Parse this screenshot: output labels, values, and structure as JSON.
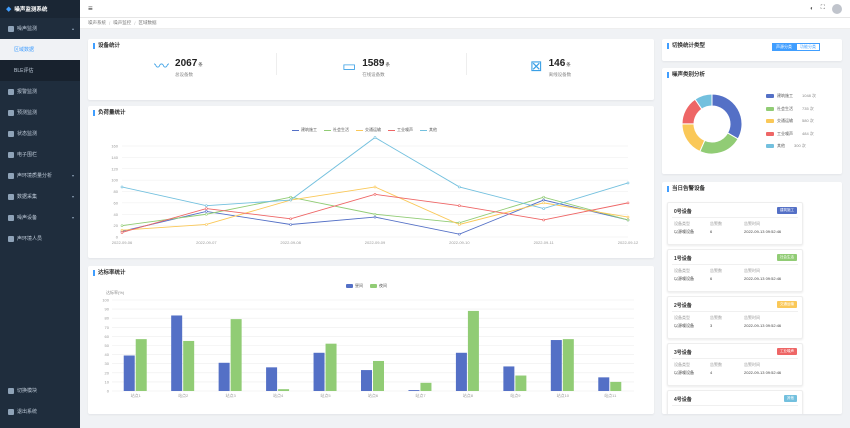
{
  "app": {
    "title": "噪声监测系统"
  },
  "sidebar": {
    "items": [
      {
        "label": "噪声监测",
        "icon": "monitor-icon",
        "caret": "▴"
      },
      {
        "label": "区域数据",
        "icon": "",
        "sub": true,
        "active": true
      },
      {
        "label": "BLE评估",
        "icon": "",
        "sub": true
      },
      {
        "label": "报警监测",
        "icon": "alarm-icon"
      },
      {
        "label": "预测监测",
        "icon": "forecast-icon"
      },
      {
        "label": "状态监测",
        "icon": "status-icon"
      },
      {
        "label": "电子围栏",
        "icon": "fence-icon"
      },
      {
        "label": "声环境质量分析",
        "icon": "analysis-icon",
        "caret": "▾"
      },
      {
        "label": "数据采集",
        "icon": "collect-icon",
        "caret": "▾"
      },
      {
        "label": "噪声设备",
        "icon": "device-icon",
        "caret": "▾"
      },
      {
        "label": "声环境人员",
        "icon": "people-icon"
      }
    ],
    "bottom": [
      {
        "label": "切换模块",
        "icon": "grid-icon"
      },
      {
        "label": "退出系统",
        "icon": "power-icon"
      }
    ]
  },
  "header": {
    "menu_icon": "≡",
    "icons": [
      "◐",
      "⛶"
    ]
  },
  "breadcrumb": [
    "噪声系统",
    "噪声监控",
    "区域数据"
  ],
  "device_stats": {
    "title": "设备统计",
    "items": [
      {
        "value": "2067",
        "unit": "条",
        "label": "总设备数",
        "icon": "waveform-icon",
        "glyph": "〰"
      },
      {
        "value": "1589",
        "unit": "条",
        "label": "在线设备数",
        "icon": "monitor-online-icon",
        "glyph": "▭"
      },
      {
        "value": "146",
        "unit": "条",
        "label": "离线设备数",
        "icon": "monitor-offline-icon",
        "glyph": "⊠"
      }
    ]
  },
  "load_chart": {
    "title": "负荷量统计",
    "chart_data": {
      "type": "line",
      "x": [
        "2022-09-06",
        "2022-09-07",
        "2022-09-08",
        "2022-09-09",
        "2022-09-10",
        "2022-09-11",
        "2022-09-12"
      ],
      "ylim": [
        0,
        160
      ],
      "yticks": [
        0,
        20,
        40,
        60,
        80,
        100,
        120,
        140,
        160
      ],
      "grid": true,
      "legend": "top-center",
      "series": [
        {
          "name": "建筑施工",
          "color": "#5470c6",
          "values": [
            10,
            45,
            22,
            35,
            5,
            65,
            30
          ]
        },
        {
          "name": "社会生活",
          "color": "#91cc75",
          "values": [
            20,
            40,
            70,
            40,
            25,
            70,
            30
          ]
        },
        {
          "name": "交通运输",
          "color": "#fac858",
          "values": [
            12,
            22,
            65,
            88,
            22,
            60,
            35
          ]
        },
        {
          "name": "工业噪声",
          "color": "#ee6666",
          "values": [
            8,
            50,
            32,
            75,
            55,
            30,
            60
          ]
        },
        {
          "name": "其他",
          "color": "#73c0de",
          "values": [
            88,
            55,
            65,
            175,
            88,
            50,
            95
          ]
        }
      ]
    }
  },
  "rate_chart": {
    "title": "达标率统计",
    "chart_data": {
      "type": "bar",
      "ylabel": "达标率(%)",
      "ylim": [
        0,
        100
      ],
      "yticks": [
        0,
        10,
        20,
        30,
        40,
        50,
        60,
        70,
        80,
        90,
        100
      ],
      "grid": true,
      "legend": "top-center",
      "categories": [
        "站点1",
        "站点2",
        "站点3",
        "站点4",
        "站点5",
        "站点6",
        "站点7",
        "站点8",
        "站点9",
        "站点10",
        "站点11"
      ],
      "series": [
        {
          "name": "昼间",
          "color": "#5470c6",
          "values": [
            39,
            83,
            31,
            26,
            42,
            23,
            1,
            42,
            27,
            56,
            15
          ]
        },
        {
          "name": "夜间",
          "color": "#91cc75",
          "values": [
            57,
            55,
            79,
            2,
            52,
            33,
            9,
            88,
            17,
            57,
            10
          ]
        }
      ]
    }
  },
  "toggle": {
    "title": "切换统计类型",
    "options": [
      "声源分类",
      "功能分类"
    ],
    "active": 0
  },
  "noise_pie": {
    "title": "噪声类别分析",
    "chart_data": {
      "type": "pie",
      "legend": "right",
      "slices": [
        {
          "name": "建筑施工",
          "value": 1048,
          "display": "1048 次",
          "color": "#5470c6"
        },
        {
          "name": "社会生活",
          "value": 735,
          "display": "735 次",
          "color": "#91cc75"
        },
        {
          "name": "交通运输",
          "value": 580,
          "display": "580 次",
          "color": "#fac858"
        },
        {
          "name": "工业噪声",
          "value": 484,
          "display": "484 次",
          "color": "#ee6666"
        },
        {
          "name": "其他",
          "value": 300,
          "display": "300 次",
          "color": "#73c0de"
        }
      ]
    }
  },
  "alarms": {
    "title": "当日告警设备",
    "keys": [
      "设备类型",
      "告警数",
      "告警时间"
    ],
    "items": [
      {
        "name": "0号设备",
        "tag": "建筑施工",
        "tag_color": "#5470c6",
        "type": "以源噪设备",
        "count": "6",
        "time": "2022-09-13 09:52:46"
      },
      {
        "name": "1号设备",
        "tag": "社会生活",
        "tag_color": "#91cc75",
        "type": "以源噪设备",
        "count": "6",
        "time": "2022-09-13 09:52:46"
      },
      {
        "name": "2号设备",
        "tag": "交通运输",
        "tag_color": "#fac858",
        "type": "以源噪设备",
        "count": "3",
        "time": "2022-09-13 09:52:46"
      },
      {
        "name": "3号设备",
        "tag": "工业噪声",
        "tag_color": "#ee6666",
        "type": "以源噪设备",
        "count": "4",
        "time": "2022-09-13 09:52:46"
      },
      {
        "name": "4号设备",
        "tag": "其他",
        "tag_color": "#73c0de"
      }
    ]
  }
}
